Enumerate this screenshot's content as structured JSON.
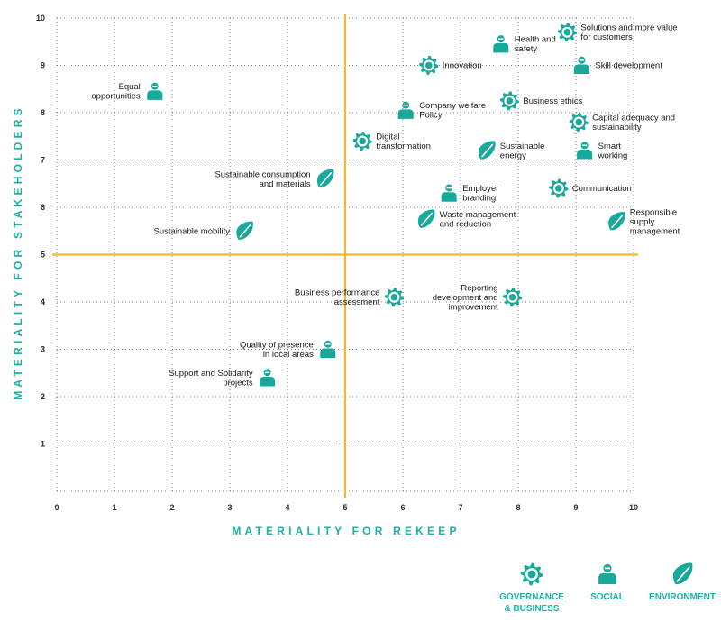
{
  "chart_data": {
    "type": "scatter",
    "title": "",
    "xlabel": "MATERIALITY FOR REKEEP",
    "ylabel": "MATERIALITY FOR STAKEHOLDERS",
    "xlim": [
      0,
      10
    ],
    "ylim": [
      0,
      10
    ],
    "x_ticks": [
      "0",
      "1",
      "2",
      "3",
      "4",
      "5",
      "6",
      "7",
      "8",
      "9",
      "10"
    ],
    "y_ticks": [
      "1",
      "2",
      "3",
      "4",
      "5",
      "6",
      "7",
      "8",
      "9",
      "10"
    ],
    "grid": "dotted",
    "quadrant_lines": {
      "x": 5,
      "y": 5
    },
    "categories": [
      {
        "key": "gov",
        "name": "GOVERNANCE\n& BUSINESS",
        "icon": "gear-icon"
      },
      {
        "key": "soc",
        "name": "SOCIAL",
        "icon": "person-icon"
      },
      {
        "key": "env",
        "name": "ENVIRONMENT",
        "icon": "leaf-icon"
      }
    ],
    "points": [
      {
        "label": "Equal\nopportunities",
        "x": 1.7,
        "y": 8.45,
        "cat": "soc",
        "side": "left"
      },
      {
        "label": "Health and\nsafety",
        "x": 7.7,
        "y": 9.45,
        "cat": "soc",
        "side": "right"
      },
      {
        "label": "Solutions and more value\nfor customers",
        "x": 8.85,
        "y": 9.7,
        "cat": "gov",
        "side": "right"
      },
      {
        "label": "Innovation",
        "x": 6.45,
        "y": 9.0,
        "cat": "gov",
        "side": "right"
      },
      {
        "label": "Skill development",
        "x": 9.1,
        "y": 9.0,
        "cat": "soc",
        "side": "right"
      },
      {
        "label": "Company welfare\nPolicy",
        "x": 6.05,
        "y": 8.05,
        "cat": "soc",
        "side": "right"
      },
      {
        "label": "Business ethics",
        "x": 7.85,
        "y": 8.25,
        "cat": "gov",
        "side": "right"
      },
      {
        "label": "Capital adequacy and\nsustainability",
        "x": 9.05,
        "y": 7.8,
        "cat": "gov",
        "side": "right"
      },
      {
        "label": "Digital\ntransformation",
        "x": 5.3,
        "y": 7.4,
        "cat": "gov",
        "side": "right"
      },
      {
        "label": "Sustainable\nenergy",
        "x": 7.45,
        "y": 7.2,
        "cat": "env",
        "side": "right"
      },
      {
        "label": "Smart\nworking",
        "x": 9.15,
        "y": 7.2,
        "cat": "soc",
        "side": "right"
      },
      {
        "label": "Sustainable consumption\nand materials",
        "x": 4.65,
        "y": 6.6,
        "cat": "env",
        "side": "left"
      },
      {
        "label": "Employer\nbranding",
        "x": 6.8,
        "y": 6.3,
        "cat": "soc",
        "side": "right"
      },
      {
        "label": "Communication",
        "x": 8.7,
        "y": 6.4,
        "cat": "gov",
        "side": "right"
      },
      {
        "label": "Waste management\nand reduction",
        "x": 6.4,
        "y": 5.75,
        "cat": "env",
        "side": "right"
      },
      {
        "label": "Responsible\nsupply\nmanagement",
        "x": 9.7,
        "y": 5.7,
        "cat": "env",
        "side": "right"
      },
      {
        "label": "Sustainable mobility",
        "x": 3.25,
        "y": 5.5,
        "cat": "env",
        "side": "left"
      },
      {
        "label": "Business performance\nassessment",
        "x": 5.85,
        "y": 4.1,
        "cat": "gov",
        "side": "left"
      },
      {
        "label": "Reporting\ndevelopment and\nimprovement",
        "x": 7.9,
        "y": 4.1,
        "cat": "gov",
        "side": "left"
      },
      {
        "label": "Quality of presence\nin local areas",
        "x": 4.7,
        "y": 3.0,
        "cat": "soc",
        "side": "left"
      },
      {
        "label": "Support and Solidarity\nprojects",
        "x": 3.65,
        "y": 2.4,
        "cat": "soc",
        "side": "left"
      }
    ],
    "colors": {
      "icon": "#19a99b",
      "axis_text": "#19b3a6",
      "quadrant": "#f6b52e",
      "grid": "#555555"
    },
    "legend_position": "bottom-right"
  }
}
